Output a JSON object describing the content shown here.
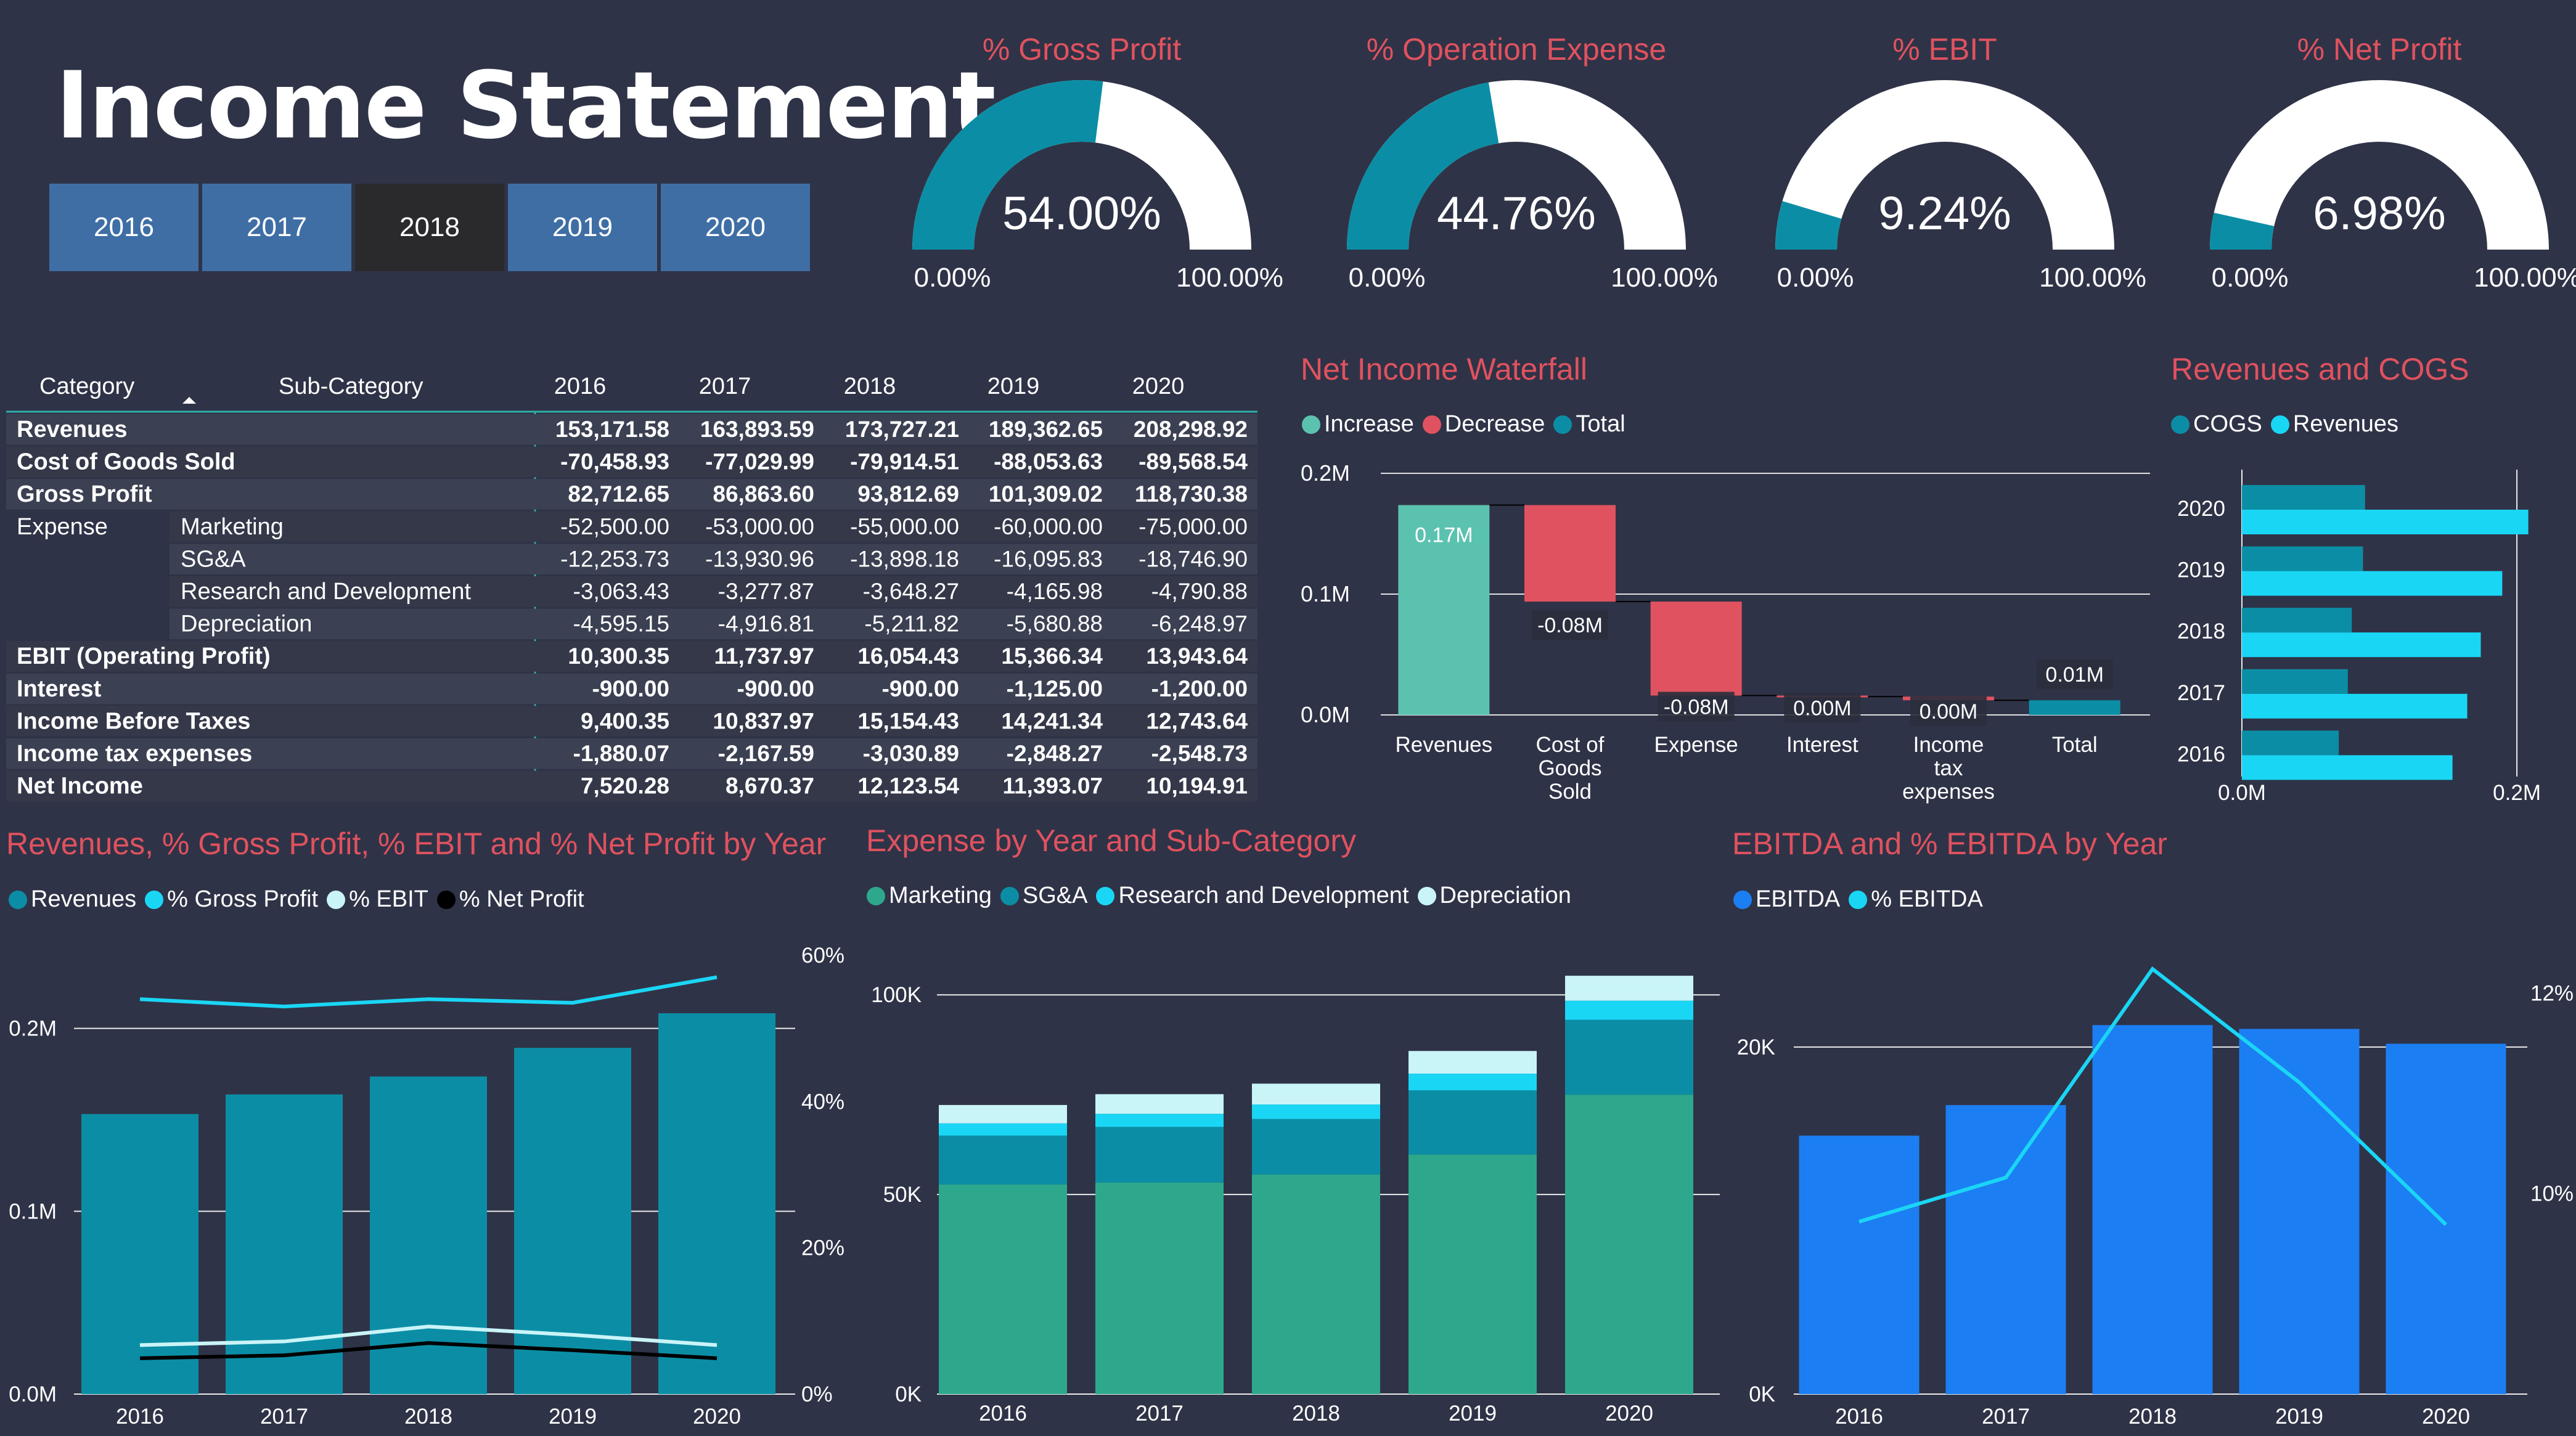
{
  "page_title": "Income Statement",
  "year_buttons": [
    "2016",
    "2017",
    "2018",
    "2019",
    "2020"
  ],
  "selected_year": "2018",
  "gauges": [
    {
      "title": "% Gross Profit",
      "value": 54.0,
      "label": "54.00%",
      "min_label": "0.00%",
      "max_label": "100.00%"
    },
    {
      "title": "% Operation Expense",
      "value": 44.76,
      "label": "44.76%",
      "min_label": "0.00%",
      "max_label": "100.00%"
    },
    {
      "title": "% EBIT",
      "value": 9.24,
      "label": "9.24%",
      "min_label": "0.00%",
      "max_label": "100.00%"
    },
    {
      "title": "% Net Profit",
      "value": 6.98,
      "label": "6.98%",
      "min_label": "0.00%",
      "max_label": "100.00%"
    }
  ],
  "colors": {
    "background": "#2f3347",
    "accent_red": "#e0525f",
    "teal": "#0b8ea5",
    "cyan": "#1ad6f5",
    "gauge_fill": "#0b8ea5",
    "gauge_rest": "#ffffff",
    "blue": "#1c7ef3",
    "green": "#2ea88c"
  },
  "table": {
    "headers": [
      "Category",
      "Sub-Category",
      "2016",
      "2017",
      "2018",
      "2019",
      "2020"
    ],
    "rows": [
      {
        "category": "Revenues",
        "sub": "",
        "values": [
          "153,171.58",
          "163,893.59",
          "173,727.21",
          "189,362.65",
          "208,298.92"
        ],
        "bold": true
      },
      {
        "category": "Cost of Goods Sold",
        "sub": "",
        "values": [
          "-70,458.93",
          "-77,029.99",
          "-79,914.51",
          "-88,053.63",
          "-89,568.54"
        ],
        "bold": true
      },
      {
        "category": "Gross Profit",
        "sub": "",
        "values": [
          "82,712.65",
          "86,863.60",
          "93,812.69",
          "101,309.02",
          "118,730.38"
        ],
        "bold": true
      },
      {
        "category": "Expense",
        "sub": "Marketing",
        "values": [
          "-52,500.00",
          "-53,000.00",
          "-55,000.00",
          "-60,000.00",
          "-75,000.00"
        ],
        "bold": false
      },
      {
        "category": "",
        "sub": "SG&A",
        "values": [
          "-12,253.73",
          "-13,930.96",
          "-13,898.18",
          "-16,095.83",
          "-18,746.90"
        ],
        "bold": false
      },
      {
        "category": "",
        "sub": "Research and Development",
        "values": [
          "-3,063.43",
          "-3,277.87",
          "-3,648.27",
          "-4,165.98",
          "-4,790.88"
        ],
        "bold": false
      },
      {
        "category": "",
        "sub": "Depreciation",
        "values": [
          "-4,595.15",
          "-4,916.81",
          "-5,211.82",
          "-5,680.88",
          "-6,248.97"
        ],
        "bold": false
      },
      {
        "category": "EBIT (Operating Profit)",
        "sub": "",
        "values": [
          "10,300.35",
          "11,737.97",
          "16,054.43",
          "15,366.34",
          "13,943.64"
        ],
        "bold": true
      },
      {
        "category": "Interest",
        "sub": "",
        "values": [
          "-900.00",
          "-900.00",
          "-900.00",
          "-1,125.00",
          "-1,200.00"
        ],
        "bold": true
      },
      {
        "category": "Income Before Taxes",
        "sub": "",
        "values": [
          "9,400.35",
          "10,837.97",
          "15,154.43",
          "14,241.34",
          "12,743.64"
        ],
        "bold": true
      },
      {
        "category": "Income tax expenses",
        "sub": "",
        "values": [
          "-1,880.07",
          "-2,167.59",
          "-3,030.89",
          "-2,848.27",
          "-2,548.73"
        ],
        "bold": true
      },
      {
        "category": "Net Income",
        "sub": "",
        "values": [
          "7,520.28",
          "8,670.37",
          "12,123.54",
          "11,393.07",
          "10,194.91"
        ],
        "bold": true
      }
    ]
  },
  "chart_data": [
    {
      "id": "waterfall",
      "type": "bar",
      "title": "Net Income Waterfall",
      "legend": [
        "Increase",
        "Decrease",
        "Total"
      ],
      "categories": [
        "Revenues",
        "Cost of Goods Sold",
        "Expense",
        "Interest",
        "Income tax expenses",
        "Total"
      ],
      "category_lines": [
        [
          "Revenues"
        ],
        [
          "Cost of",
          "Goods",
          "Sold"
        ],
        [
          "Expense"
        ],
        [
          "Interest"
        ],
        [
          "Income",
          "tax",
          "expenses"
        ],
        [
          "Total"
        ]
      ],
      "values": [
        173727.21,
        -79914.51,
        -77758.27,
        -900.0,
        -3030.89,
        12123.54
      ],
      "kinds": [
        "increase",
        "decrease",
        "decrease",
        "decrease",
        "decrease",
        "total"
      ],
      "data_labels": [
        "0.17M",
        "-0.08M",
        "-0.08M",
        "0.00M",
        "0.00M",
        "0.01M"
      ],
      "yticks": [
        0,
        100000,
        200000
      ],
      "ytick_labels": [
        "0.0M",
        "0.1M",
        "0.2M"
      ],
      "ylim": [
        0,
        200000
      ]
    },
    {
      "id": "rev_cogs",
      "type": "bar",
      "title": "Revenues and COGS",
      "orientation": "horizontal",
      "categories": [
        "2020",
        "2019",
        "2018",
        "2017",
        "2016"
      ],
      "series": [
        {
          "name": "COGS",
          "values": [
            89568.54,
            88053.63,
            79914.51,
            77029.99,
            70458.93
          ]
        },
        {
          "name": "Revenues",
          "values": [
            208298.92,
            189362.65,
            173727.21,
            163893.59,
            153171.58
          ]
        }
      ],
      "xticks": [
        0,
        200000
      ],
      "xtick_labels": [
        "0.0M",
        "0.2M"
      ],
      "xlim": [
        0,
        230000
      ]
    },
    {
      "id": "rev_pct",
      "type": "bar",
      "title": "Revenues, % Gross Profit, % EBIT and % Net Profit by Year",
      "categories": [
        "2016",
        "2017",
        "2018",
        "2019",
        "2020"
      ],
      "series": [
        {
          "name": "Revenues",
          "values": [
            153171.58,
            163893.59,
            173727.21,
            189362.65,
            208298.92
          ]
        },
        {
          "name": "% Gross Profit",
          "values": [
            54.0,
            53.0,
            54.0,
            53.5,
            57.0
          ]
        },
        {
          "name": "% EBIT",
          "values": [
            6.7,
            7.2,
            9.24,
            8.1,
            6.7
          ]
        },
        {
          "name": "% Net Profit",
          "values": [
            4.9,
            5.3,
            6.98,
            6.0,
            4.9
          ]
        }
      ],
      "yticks": [
        0,
        100000,
        200000
      ],
      "ytick_labels": [
        "0.0M",
        "0.1M",
        "0.2M"
      ],
      "ylim": [
        0,
        240000
      ],
      "y2ticks": [
        0,
        20,
        40,
        60
      ],
      "y2tick_labels": [
        "0%",
        "20%",
        "40%",
        "60%"
      ],
      "y2lim": [
        0,
        60
      ]
    },
    {
      "id": "expense",
      "type": "bar",
      "title": "Expense by Year and Sub-Category",
      "stacked": true,
      "categories": [
        "2016",
        "2017",
        "2018",
        "2019",
        "2020"
      ],
      "series": [
        {
          "name": "Marketing",
          "values": [
            52500.0,
            53000.0,
            55000.0,
            60000.0,
            75000.0
          ]
        },
        {
          "name": "SG&A",
          "values": [
            12253.73,
            13930.96,
            13898.18,
            16095.83,
            18746.9
          ]
        },
        {
          "name": "Research and Development",
          "values": [
            3063.43,
            3277.87,
            3648.27,
            4165.98,
            4790.88
          ]
        },
        {
          "name": "Depreciation",
          "values": [
            4595.15,
            4916.81,
            5211.82,
            5680.88,
            6248.97
          ]
        }
      ],
      "yticks": [
        0,
        50000,
        100000
      ],
      "ytick_labels": [
        "0K",
        "50K",
        "100K"
      ],
      "ylim": [
        0,
        113000
      ]
    },
    {
      "id": "ebitda",
      "type": "bar",
      "title": "EBITDA and % EBITDA by Year",
      "categories": [
        "2016",
        "2017",
        "2018",
        "2019",
        "2020"
      ],
      "series": [
        {
          "name": "EBITDA",
          "values": [
            14895.5,
            16654.78,
            21266.25,
            21047.22,
            20192.61
          ]
        },
        {
          "name": "% EBITDA",
          "values": [
            9.72,
            10.16,
            12.24,
            11.11,
            9.69
          ]
        }
      ],
      "yticks": [
        0,
        20000
      ],
      "ytick_labels": [
        "0K",
        "20K"
      ],
      "ylim": [
        0,
        26000
      ],
      "y2ticks": [
        10,
        12
      ],
      "y2tick_labels": [
        "10%",
        "12%"
      ],
      "y2lim": [
        8,
        12.5
      ]
    }
  ]
}
